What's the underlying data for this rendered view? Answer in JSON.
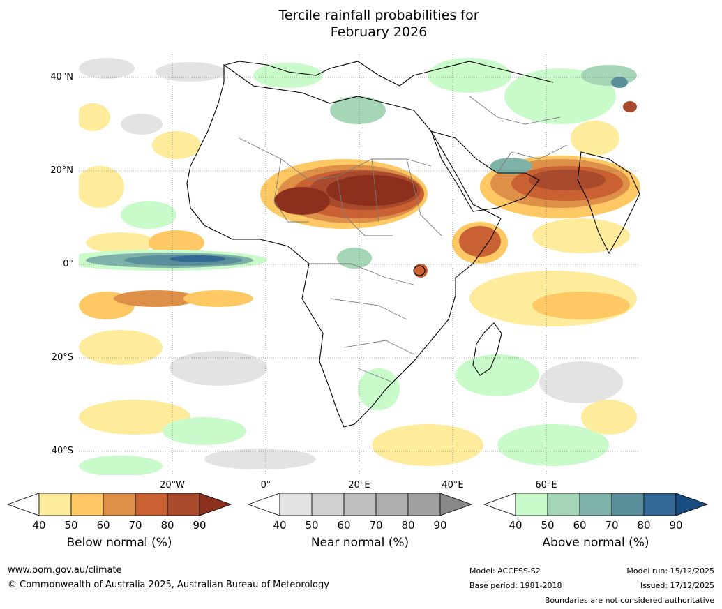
{
  "title": {
    "line1": "Tercile rainfall probabilities for",
    "line2": "February 2026"
  },
  "map": {
    "region": "Africa and surrounding oceans",
    "lat_labels": [
      "40°N",
      "20°N",
      "0°",
      "20°S",
      "40°S"
    ],
    "lon_labels": [
      "20°W",
      "0°",
      "20°E",
      "40°E",
      "60°E"
    ]
  },
  "legends": [
    {
      "label": "Below normal (%)",
      "ticks": [
        "40",
        "50",
        "60",
        "70",
        "80",
        "90"
      ],
      "colors": [
        "#ffffff",
        "#ffeb9c",
        "#fec964",
        "#de9049",
        "#c96133",
        "#a84a2b",
        "#8c2f1c"
      ]
    },
    {
      "label": "Near normal (%)",
      "ticks": [
        "40",
        "50",
        "60",
        "70",
        "80",
        "90"
      ],
      "colors": [
        "#ffffff",
        "#e3e3e3",
        "#d0d0d0",
        "#bfbfbf",
        "#afafaf",
        "#a0a0a0",
        "#888888"
      ]
    },
    {
      "label": "Above normal (%)",
      "ticks": [
        "40",
        "50",
        "60",
        "70",
        "80",
        "90"
      ],
      "colors": [
        "#ffffff",
        "#c9fac9",
        "#a5d6b6",
        "#7fb3aa",
        "#5a8f9c",
        "#336994",
        "#194d82"
      ]
    }
  ],
  "footer": {
    "website": "www.bom.gov.au/climate",
    "copyright": "© Commonwealth of Australia 2025, Australian Bureau of Meteorology",
    "model": "Model: ACCESS-S2",
    "base_period": "Base period: 1981-2018",
    "model_run": "Model run: 15/12/2025",
    "issued": "Issued: 17/12/2025",
    "disclaimer": "Boundaries are not considered authoritative"
  }
}
